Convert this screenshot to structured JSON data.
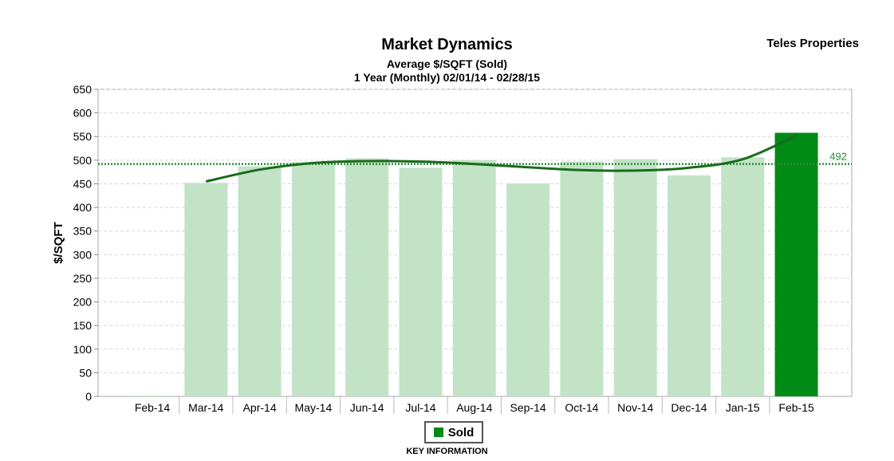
{
  "header": {
    "brand": "Teles Properties"
  },
  "chart_data": {
    "type": "bar",
    "title": "Market Dynamics",
    "subtitle": "Average $/SQFT (Sold)",
    "subtitle2": "1 Year (Monthly) 02/01/14 - 02/28/15",
    "ylabel": "$/SQFT",
    "xlabel": "",
    "ylim": [
      0,
      650
    ],
    "yticks": [
      0,
      50,
      100,
      150,
      200,
      250,
      300,
      350,
      400,
      450,
      500,
      550,
      600,
      650
    ],
    "categories": [
      "Feb-14",
      "Mar-14",
      "Apr-14",
      "May-14",
      "Jun-14",
      "Jul-14",
      "Aug-14",
      "Sep-14",
      "Oct-14",
      "Nov-14",
      "Dec-14",
      "Jan-15",
      "Feb-15"
    ],
    "series": [
      {
        "name": "Sold",
        "values": [
          0,
          452,
          487,
          496,
          504,
          484,
          500,
          451,
          497,
          502,
          468,
          506,
          558
        ]
      }
    ],
    "highlight_index": 12,
    "average_line": {
      "value": 492,
      "label": "492"
    },
    "trend_line": [
      455,
      480,
      494,
      498,
      497,
      492,
      485,
      479,
      478,
      484,
      502,
      552
    ],
    "grid": true,
    "legend": {
      "position": "bottom",
      "caption": "KEY INFORMATION"
    },
    "colors": {
      "bar": "#c2e3c6",
      "bar_highlight": "#008a16",
      "average_line": "#2e8b3e",
      "trend_line": "#1a6b1a",
      "grid": "#d8d8d8"
    }
  }
}
